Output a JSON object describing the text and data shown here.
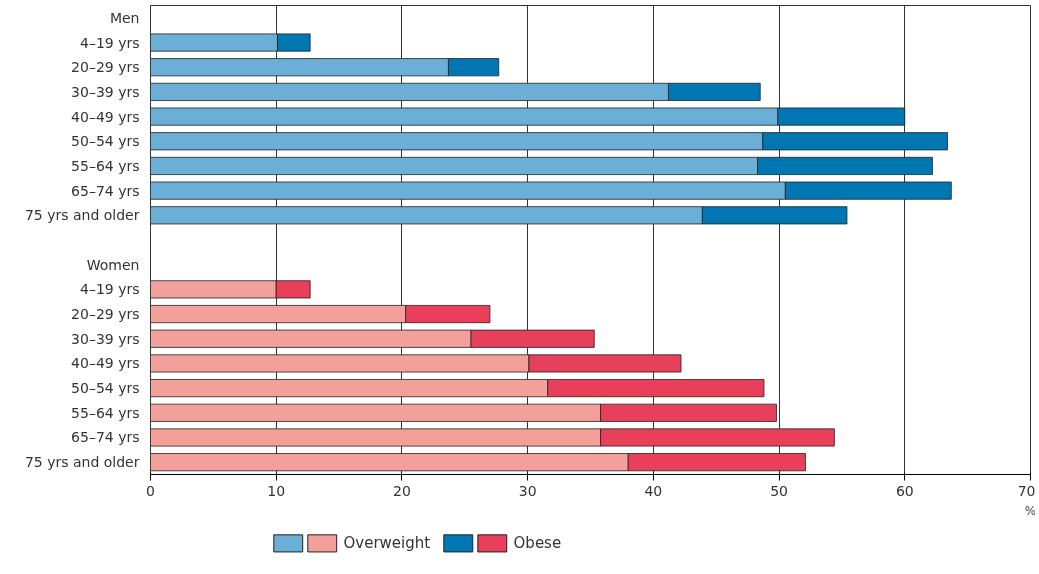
{
  "chart_data": {
    "type": "bar",
    "orientation": "horizontal",
    "stacked": true,
    "xlabel": "%",
    "categories": [
      "Men",
      "4–19 yrs",
      "20–29 yrs",
      "30–39 yrs",
      "40–49 yrs",
      "50–54 yrs",
      "55–64 yrs",
      "65–74 yrs",
      "75 yrs and older",
      null,
      "Women",
      "4–19 yrs",
      "20–29 yrs",
      "30–39 yrs",
      "40–49 yrs",
      "50–54 yrs",
      "55–64 yrs",
      "65–74 yrs",
      "75 yrs and older"
    ],
    "series": [
      {
        "name": "Overweight",
        "values": [
          null,
          10.1,
          23.7,
          41.2,
          49.9,
          48.7,
          48.3,
          50.5,
          43.9,
          null,
          null,
          10.0,
          20.3,
          25.5,
          30.1,
          31.6,
          35.8,
          35.8,
          38.0
        ],
        "colors": [
          null,
          "#6baed6",
          "#6baed6",
          "#6baed6",
          "#6baed6",
          "#6baed6",
          "#6baed6",
          "#6baed6",
          "#6baed6",
          null,
          null,
          "#f4a09a",
          "#f4a09a",
          "#f4a09a",
          "#f4a09a",
          "#f4a09a",
          "#f4a09a",
          "#f4a09a",
          "#f4a09a"
        ]
      },
      {
        "name": "Obese",
        "values": [
          null,
          2.6,
          4.0,
          7.3,
          10.1,
          14.7,
          13.9,
          13.2,
          11.5,
          null,
          null,
          2.7,
          6.7,
          9.8,
          12.1,
          17.2,
          14.0,
          18.6,
          14.1
        ],
        "colors": [
          null,
          "#0077b3",
          "#0077b3",
          "#0077b3",
          "#0077b3",
          "#0077b3",
          "#0077b3",
          "#0077b3",
          "#0077b3",
          null,
          null,
          "#e8405a",
          "#e8405a",
          "#e8405a",
          "#e8405a",
          "#e8405a",
          "#e8405a",
          "#e8405a",
          "#e8405a"
        ]
      }
    ],
    "xlim": [
      0,
      70
    ],
    "xticks": [
      0,
      10,
      20,
      30,
      40,
      50,
      60,
      70
    ],
    "grid": "x",
    "legend": "bottom left"
  }
}
